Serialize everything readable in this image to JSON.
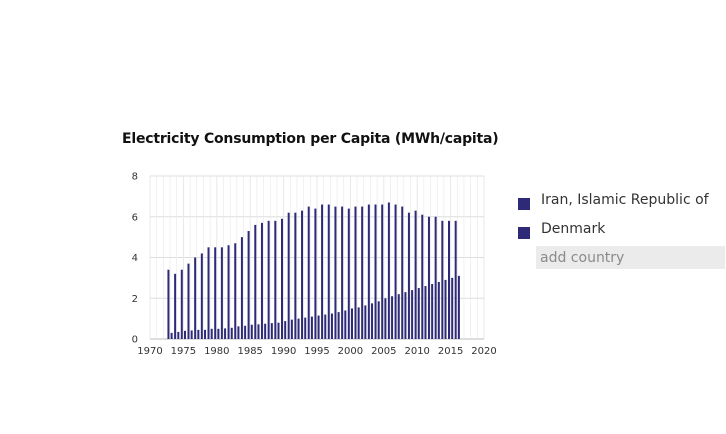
{
  "colors": {
    "iran": "#2e2a78",
    "denmark": "#2e2a78",
    "grid": "#dddddd"
  },
  "legend": {
    "items": [
      {
        "label": "Iran, Islamic Republic of",
        "color": "#2e2a78"
      },
      {
        "label": "Denmark",
        "color": "#2e2a78"
      }
    ],
    "add_country_placeholder": "add country"
  },
  "chart_data": {
    "type": "bar",
    "title": "Electricity Consumption per Capita (MWh/capita)",
    "xlabel": "",
    "ylabel": "",
    "xlim": [
      1970,
      2020
    ],
    "ylim": [
      0,
      8
    ],
    "grid": true,
    "x_ticks": [
      "1970",
      "1975",
      "1980",
      "1985",
      "1990",
      "1995",
      "2000",
      "2005",
      "2010",
      "2015",
      "2020"
    ],
    "y_ticks": [
      "0",
      "2",
      "4",
      "6",
      "8"
    ],
    "legend_placement": "right",
    "x": [
      1973,
      1974,
      1975,
      1976,
      1977,
      1978,
      1979,
      1980,
      1981,
      1982,
      1983,
      1984,
      1985,
      1986,
      1987,
      1988,
      1989,
      1990,
      1991,
      1992,
      1993,
      1994,
      1995,
      1996,
      1997,
      1998,
      1999,
      2000,
      2001,
      2002,
      2003,
      2004,
      2005,
      2006,
      2007,
      2008,
      2009,
      2010,
      2011,
      2012,
      2013,
      2014,
      2015,
      2016
    ],
    "series": [
      {
        "name": "Denmark",
        "values": [
          3.4,
          3.2,
          3.4,
          3.7,
          4.0,
          4.2,
          4.5,
          4.5,
          4.5,
          4.6,
          4.7,
          5.0,
          5.3,
          5.6,
          5.7,
          5.8,
          5.8,
          5.9,
          6.2,
          6.2,
          6.3,
          6.5,
          6.4,
          6.6,
          6.6,
          6.5,
          6.5,
          6.4,
          6.5,
          6.5,
          6.6,
          6.6,
          6.6,
          6.7,
          6.6,
          6.5,
          6.2,
          6.3,
          6.1,
          6.0,
          6.0,
          5.8,
          5.8,
          5.8
        ]
      },
      {
        "name": "Iran, Islamic Republic of",
        "values": [
          0.3,
          0.35,
          0.4,
          0.42,
          0.45,
          0.45,
          0.5,
          0.5,
          0.52,
          0.55,
          0.62,
          0.65,
          0.7,
          0.72,
          0.75,
          0.78,
          0.8,
          0.88,
          0.95,
          1.0,
          1.05,
          1.1,
          1.15,
          1.2,
          1.25,
          1.32,
          1.4,
          1.5,
          1.55,
          1.65,
          1.75,
          1.85,
          2.0,
          2.1,
          2.2,
          2.3,
          2.4,
          2.5,
          2.6,
          2.7,
          2.8,
          2.9,
          3.0,
          3.1
        ]
      }
    ]
  }
}
